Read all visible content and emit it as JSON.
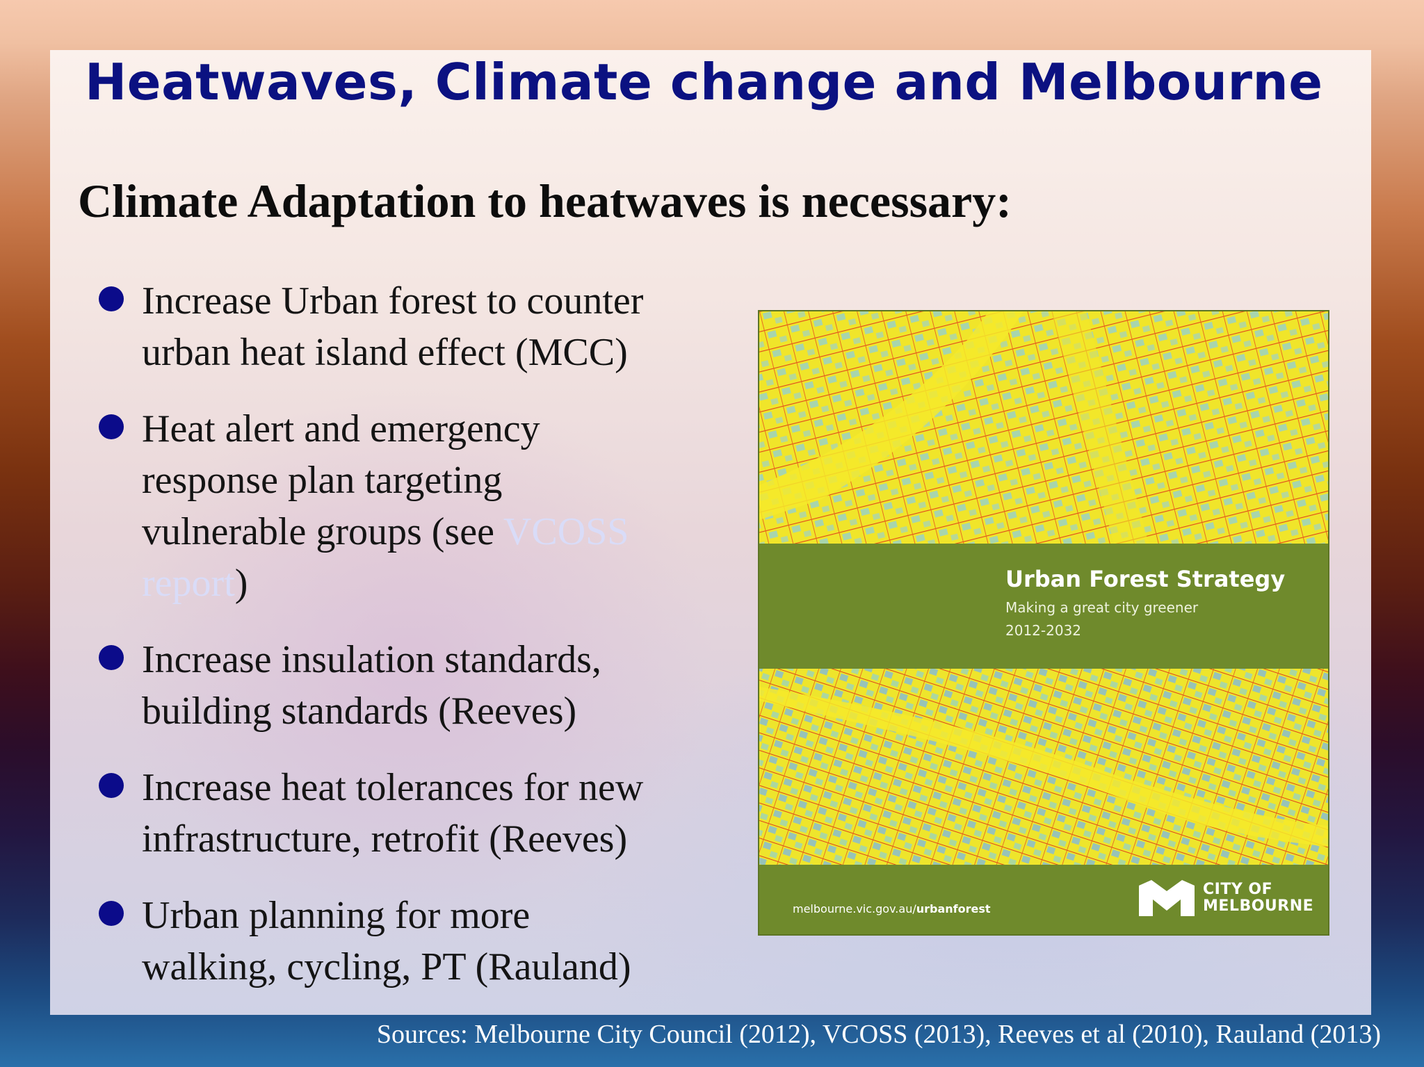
{
  "slide": {
    "title": "Heatwaves, Climate change and Melbourne",
    "subtitle": "Climate Adaptation to heatwaves is necessary:",
    "bullets": [
      {
        "line1": "Increase Urban forest to counter",
        "line2": "urban heat island effect (MCC)"
      },
      {
        "line1": "Heat alert and emergency",
        "line2": "response plan targeting",
        "line3_pre": "vulnerable groups (see ",
        "link_a": "VCOSS",
        "link_b": "report",
        "line4_post": ")"
      },
      {
        "line1": "Increase insulation standards,",
        "line2": "building standards (Reeves)"
      },
      {
        "line1": "Increase heat tolerances for new",
        "line2": "infrastructure, retrofit (Reeves)"
      },
      {
        "line1": "Urban planning for more",
        "line2": "walking, cycling, PT (Rauland)"
      }
    ],
    "sources": "Sources: Melbourne City Council (2012), VCOSS (2013), Reeves et al (2010), Rauland (2013)"
  },
  "cover": {
    "title": "Urban Forest Strategy",
    "subtitle": "Making a great city greener",
    "years": "2012-2032",
    "url_prefix": "melbourne.vic.gov.au/",
    "url_bold": "urbanforest",
    "logo_text": "CITY OF\nMELBOURNE"
  },
  "colors": {
    "title": "#0b1181",
    "bullet": "#0b0b8a",
    "cover_green": "#6f8a2c",
    "heat_yellow": "#f2e826",
    "heat_red": "#e0431a",
    "cool_blue": "#7ec6e6"
  }
}
